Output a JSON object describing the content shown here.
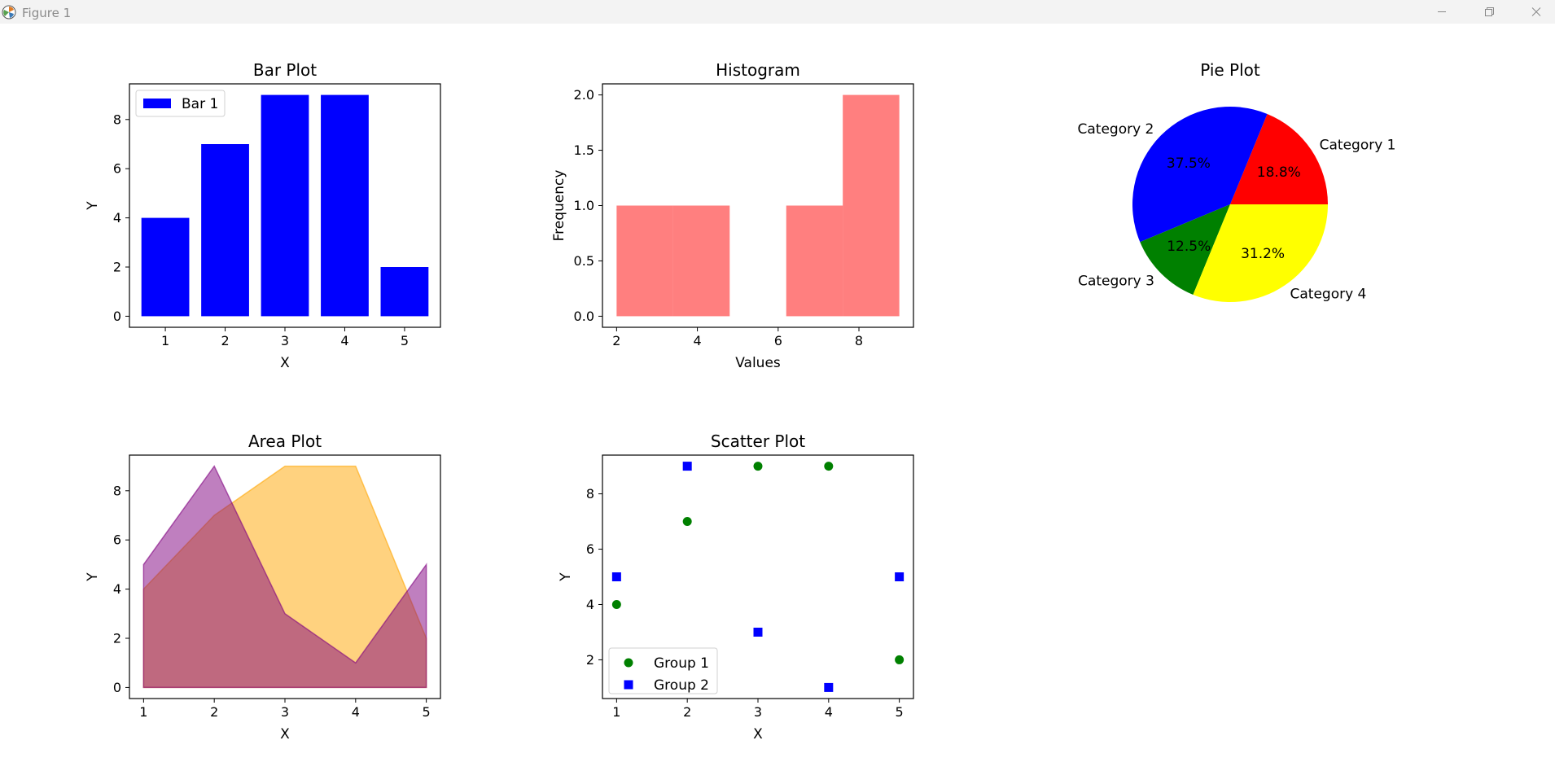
{
  "window": {
    "title": "Figure 1",
    "controls": [
      "minimize",
      "maximize",
      "close"
    ]
  },
  "chart_data": [
    {
      "type": "bar",
      "title": "Bar Plot",
      "xlabel": "X",
      "ylabel": "Y",
      "categories": [
        1,
        2,
        3,
        4,
        5
      ],
      "series": [
        {
          "name": "Bar 1",
          "values": [
            4,
            7,
            9,
            9,
            2
          ],
          "color": "#0000ff"
        }
      ],
      "xticks": [
        1,
        2,
        3,
        4,
        5
      ],
      "yticks": [
        0,
        2,
        4,
        6,
        8
      ],
      "legend": "upper-left"
    },
    {
      "type": "bar",
      "subtype": "histogram",
      "title": "Histogram",
      "xlabel": "Values",
      "ylabel": "Frequency",
      "bins": [
        {
          "start": 2.0,
          "end": 3.4,
          "count": 1
        },
        {
          "start": 3.4,
          "end": 4.8,
          "count": 1
        },
        {
          "start": 4.8,
          "end": 6.2,
          "count": 0
        },
        {
          "start": 6.2,
          "end": 7.6,
          "count": 1
        },
        {
          "start": 7.6,
          "end": 9.0,
          "count": 2
        }
      ],
      "color": "#ff0000",
      "alpha": 0.5,
      "xticks": [
        2,
        4,
        6,
        8
      ],
      "yticks": [
        "0.0",
        "0.5",
        "1.0",
        "1.5",
        "2.0"
      ]
    },
    {
      "type": "pie",
      "title": "Pie Plot",
      "slices": [
        {
          "label": "Category 1",
          "value": 18.8,
          "pct_label": "18.8%",
          "color": "#ff0000"
        },
        {
          "label": "Category 2",
          "value": 37.5,
          "pct_label": "37.5%",
          "color": "#0000ff"
        },
        {
          "label": "Category 3",
          "value": 12.5,
          "pct_label": "12.5%",
          "color": "#008000"
        },
        {
          "label": "Category 4",
          "value": 31.2,
          "pct_label": "31.2%",
          "color": "#ffff00"
        }
      ]
    },
    {
      "type": "area",
      "title": "Area Plot",
      "xlabel": "X",
      "ylabel": "Y",
      "x": [
        1,
        2,
        3,
        4,
        5
      ],
      "series": [
        {
          "values": [
            4,
            7,
            9,
            9,
            2
          ],
          "color": "#ffa500",
          "alpha": 0.5
        },
        {
          "values": [
            5,
            9,
            3,
            1,
            5
          ],
          "color": "#800080",
          "alpha": 0.5
        }
      ],
      "xticks": [
        1,
        2,
        3,
        4,
        5
      ],
      "yticks": [
        0,
        2,
        4,
        6,
        8
      ]
    },
    {
      "type": "scatter",
      "title": "Scatter Plot",
      "xlabel": "X",
      "ylabel": "Y",
      "series": [
        {
          "name": "Group 1",
          "marker": "circle",
          "color": "#008000",
          "x": [
            1,
            2,
            3,
            4,
            5
          ],
          "y": [
            4,
            7,
            9,
            9,
            2
          ]
        },
        {
          "name": "Group 2",
          "marker": "square",
          "color": "#0000ff",
          "x": [
            1,
            2,
            3,
            4,
            5
          ],
          "y": [
            5,
            9,
            3,
            1,
            5
          ]
        }
      ],
      "xticks": [
        1,
        2,
        3,
        4,
        5
      ],
      "yticks": [
        2,
        4,
        6,
        8
      ],
      "legend": "lower-left"
    }
  ]
}
